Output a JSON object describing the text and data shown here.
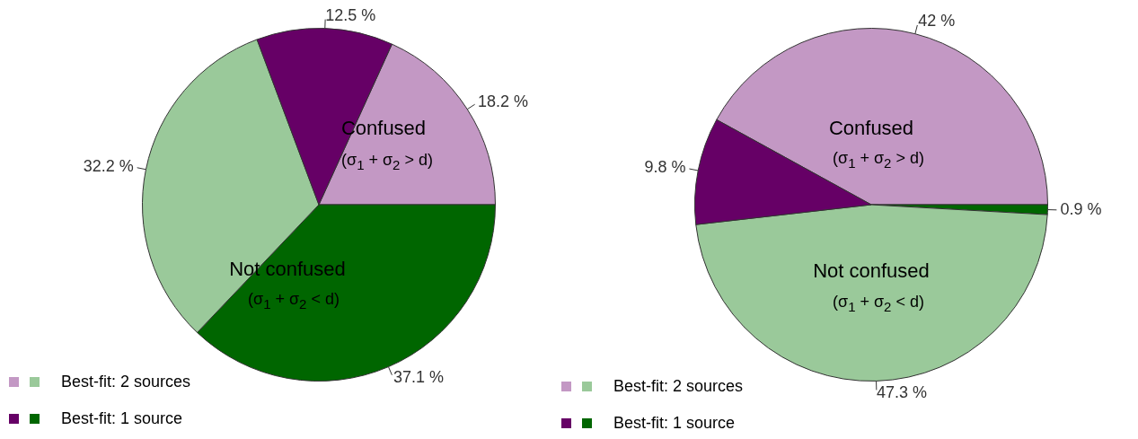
{
  "chart_data": [
    {
      "type": "pie",
      "categories": [
        null,
        null,
        null,
        null
      ],
      "values": [
        18.2,
        37.1,
        32.2,
        12.5
      ],
      "colors": [
        "#c398c4",
        "#006600",
        "#9ac99a",
        "#660066"
      ],
      "value_labels": [
        "18.2 %",
        "37.1 %",
        "32.2 %",
        "12.5 %"
      ],
      "annotations": [
        "Confused",
        "(σ$_{1}$ + σ$_{2}$ > d)",
        "Not confused",
        "(σ$_{1}$ + σ$_{2}$ < d)",
        "Best-fit: 2 sources",
        "Best-fit: 1 source"
      ]
    },
    {
      "type": "pie",
      "categories": [
        null,
        null,
        null,
        null
      ],
      "values": [
        42,
        0.9,
        47.3,
        9.8
      ],
      "colors": [
        "#c398c4",
        "#006600",
        "#9ac99a",
        "#660066"
      ],
      "value_labels": [
        "42 %",
        "0.9 %",
        "47.3 %",
        "9.8 %"
      ],
      "annotations": [
        "Confused",
        "(σ$_{1}$ + σ$_{2}$ > d)",
        "Not confused",
        "(σ$_{1}$ + σ$_{2}$ < d)",
        "Best-fit: 2 sources",
        "Best-fit: 1 source"
      ]
    }
  ]
}
